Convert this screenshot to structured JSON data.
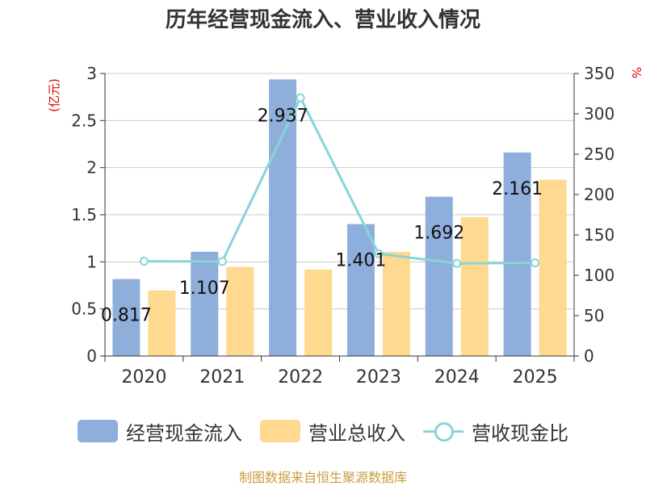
{
  "title": "历年经营现金流入、营业收入情况",
  "source": "制图数据来自恒生聚源数据库",
  "chart_data": {
    "type": "bar",
    "categories": [
      "2020",
      "2021",
      "2022",
      "2023",
      "2024",
      "2025"
    ],
    "series": [
      {
        "name": "经营现金流入",
        "kind": "bar",
        "axis": "left",
        "color": "#8eaedb",
        "values": [
          0.817,
          1.107,
          2.937,
          1.401,
          1.692,
          2.161
        ],
        "labels": [
          "0.817",
          "1.107",
          "2.937",
          "1.401",
          "1.692",
          "2.161"
        ]
      },
      {
        "name": "营业总收入",
        "kind": "bar",
        "axis": "left",
        "color": "#ffd98f",
        "values": [
          0.696,
          0.945,
          0.918,
          1.106,
          1.475,
          1.873
        ]
      },
      {
        "name": "营收现金比",
        "kind": "line",
        "axis": "right",
        "color": "#88d4d8",
        "values": [
          117.4,
          117.1,
          319.9,
          126.7,
          114.7,
          115.4
        ]
      }
    ],
    "left_axis": {
      "label": "(亿元)",
      "ylim": [
        0,
        3
      ],
      "ticks": [
        "0",
        "0.5",
        "1",
        "1.5",
        "2",
        "2.5",
        "3"
      ]
    },
    "right_axis": {
      "label": "%",
      "ylim": [
        0,
        350
      ],
      "ticks": [
        "0",
        "50",
        "100",
        "150",
        "200",
        "250",
        "300",
        "350"
      ]
    },
    "grid": true,
    "legend": "bottom"
  }
}
